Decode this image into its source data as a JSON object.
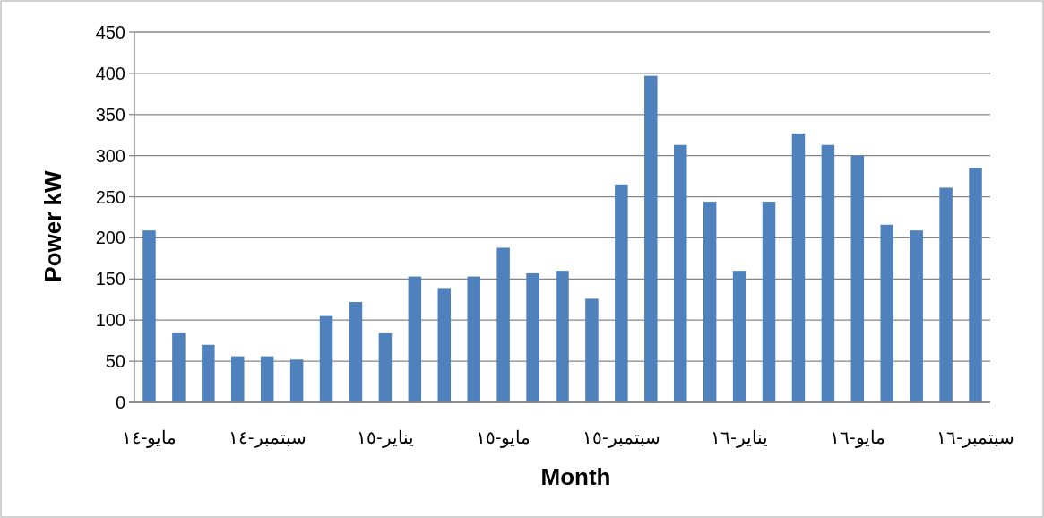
{
  "chart_data": {
    "type": "bar",
    "xlabel": "Month",
    "ylabel": "Power kW",
    "categories": [
      "مايو-١٤",
      null,
      null,
      null,
      "سبتمبر-١٤",
      null,
      null,
      null,
      "يناير-١٥",
      null,
      null,
      null,
      "مايو-١٥",
      null,
      null,
      null,
      "سبتمبر-١٥",
      null,
      null,
      null,
      "يناير-١٦",
      null,
      null,
      null,
      "مايو-١٦",
      null,
      null,
      null,
      "سبتمبر-١٦"
    ],
    "values": [
      209,
      84,
      70,
      56,
      56,
      52,
      105,
      122,
      84,
      153,
      139,
      153,
      188,
      157,
      160,
      126,
      265,
      397,
      313,
      244,
      160,
      244,
      327,
      313,
      300,
      216,
      209,
      261,
      285
    ],
    "color": "#4f81bd",
    "ylim": [
      0,
      450
    ],
    "yticks": [
      0,
      50,
      100,
      150,
      200,
      250,
      300,
      350,
      400,
      450
    ],
    "grid": "y"
  }
}
